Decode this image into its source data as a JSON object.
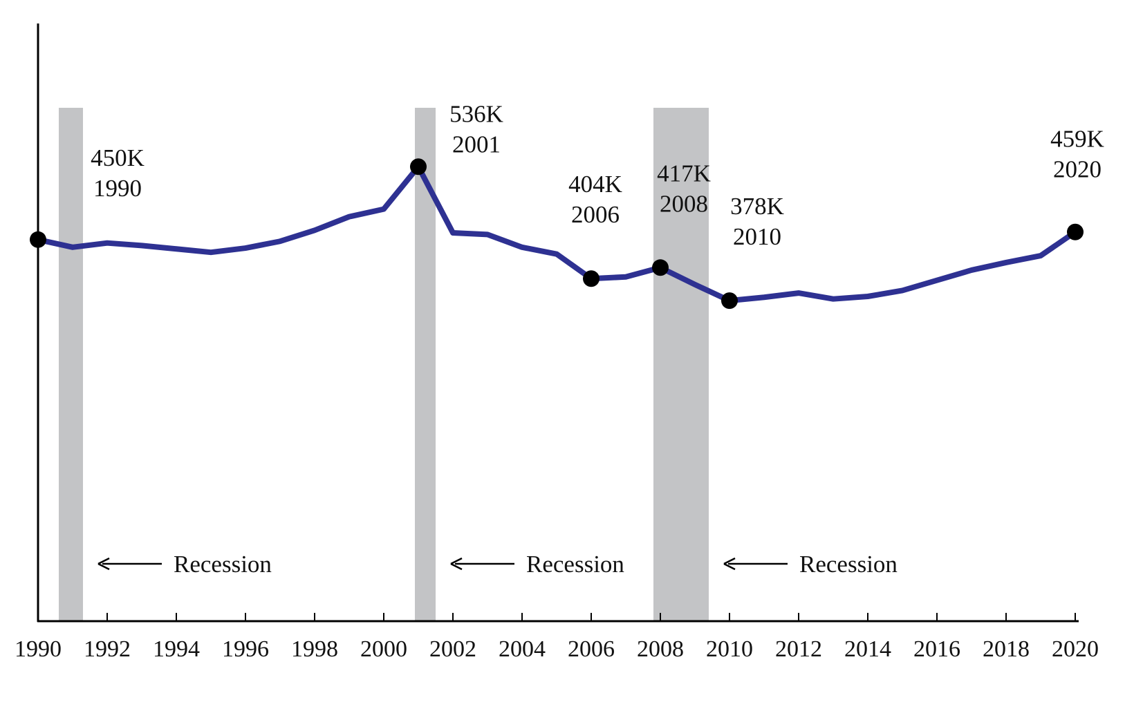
{
  "chart_data": {
    "type": "line",
    "title": "",
    "xlabel": "",
    "ylabel": "",
    "line_color": "#2e3192",
    "recession_color": "#c3c4c6",
    "marker_color": "#000000",
    "x": [
      1990,
      1991,
      1992,
      1993,
      1994,
      1995,
      1996,
      1997,
      1998,
      1999,
      2000,
      2001,
      2002,
      2003,
      2004,
      2005,
      2006,
      2007,
      2008,
      2009,
      2010,
      2011,
      2012,
      2013,
      2014,
      2015,
      2016,
      2017,
      2018,
      2019,
      2020
    ],
    "series": [
      {
        "values": [
          450,
          441,
          446,
          443,
          439,
          435,
          440,
          448,
          461,
          477,
          486,
          536,
          458,
          456,
          441,
          433,
          404,
          406,
          417,
          397,
          378,
          382,
          387,
          380,
          383,
          390,
          402,
          414,
          423,
          431,
          459
        ]
      }
    ],
    "xlim": [
      1990,
      2020
    ],
    "ylim": [
      0,
      700
    ],
    "x_ticks": [
      1990,
      1992,
      1994,
      1996,
      1998,
      2000,
      2002,
      2004,
      2006,
      2008,
      2010,
      2012,
      2014,
      2016,
      2018,
      2020
    ],
    "highlighted_points": [
      {
        "x": 1990,
        "y": 450,
        "value_label": "450K",
        "year_label": "1990"
      },
      {
        "x": 2001,
        "y": 536,
        "value_label": "536K",
        "year_label": "2001"
      },
      {
        "x": 2006,
        "y": 404,
        "value_label": "404K",
        "year_label": "2006"
      },
      {
        "x": 2008,
        "y": 417,
        "value_label": "417K",
        "year_label": "2008"
      },
      {
        "x": 2010,
        "y": 378,
        "value_label": "378K",
        "year_label": "2010"
      },
      {
        "x": 2020,
        "y": 459,
        "value_label": "459K",
        "year_label": "2020"
      }
    ],
    "recessions": [
      {
        "start": 1990.6,
        "end": 1991.3,
        "label": "Recession"
      },
      {
        "start": 2000.9,
        "end": 2001.5,
        "label": "Recession"
      },
      {
        "start": 2007.8,
        "end": 2009.4,
        "label": "Recession"
      }
    ],
    "grid": false,
    "legend": "none"
  }
}
